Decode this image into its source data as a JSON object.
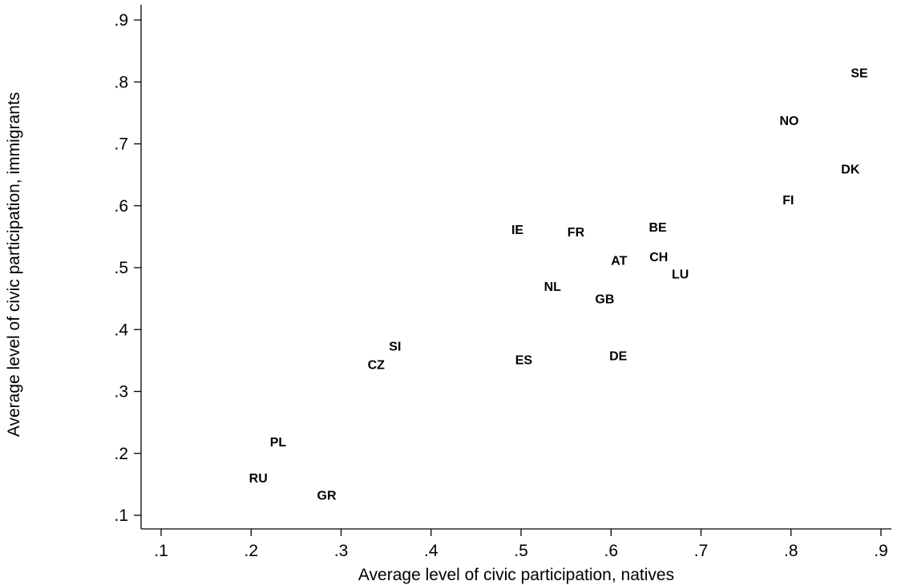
{
  "chart_data": {
    "type": "scatter",
    "title": "",
    "xlabel": "Average level of civic participation, natives",
    "ylabel": "Average level of civic participation, immigrants",
    "xlim": [
      0.1,
      0.9
    ],
    "ylim": [
      0.1,
      0.9
    ],
    "x_ticks": [
      ".1",
      ".2",
      ".3",
      ".4",
      ".5",
      ".6",
      ".7",
      ".8",
      ".9"
    ],
    "y_ticks": [
      ".1",
      ".2",
      ".3",
      ".4",
      ".5",
      ".6",
      ".7",
      ".8",
      ".9"
    ],
    "grid": false,
    "marker": "country-code label",
    "points": [
      {
        "label": "SE",
        "x": 0.876,
        "y": 0.815
      },
      {
        "label": "NO",
        "x": 0.798,
        "y": 0.738
      },
      {
        "label": "DK",
        "x": 0.866,
        "y": 0.66
      },
      {
        "label": "FI",
        "x": 0.797,
        "y": 0.61
      },
      {
        "label": "IE",
        "x": 0.496,
        "y": 0.562
      },
      {
        "label": "FR",
        "x": 0.561,
        "y": 0.558
      },
      {
        "label": "BE",
        "x": 0.652,
        "y": 0.566
      },
      {
        "label": "AT",
        "x": 0.609,
        "y": 0.512
      },
      {
        "label": "CH",
        "x": 0.653,
        "y": 0.518
      },
      {
        "label": "LU",
        "x": 0.677,
        "y": 0.49
      },
      {
        "label": "NL",
        "x": 0.535,
        "y": 0.47
      },
      {
        "label": "GB",
        "x": 0.593,
        "y": 0.45
      },
      {
        "label": "SI",
        "x": 0.36,
        "y": 0.374
      },
      {
        "label": "ES",
        "x": 0.503,
        "y": 0.352
      },
      {
        "label": "DE",
        "x": 0.608,
        "y": 0.358
      },
      {
        "label": "CZ",
        "x": 0.339,
        "y": 0.344
      },
      {
        "label": "PL",
        "x": 0.23,
        "y": 0.219
      },
      {
        "label": "RU",
        "x": 0.208,
        "y": 0.161
      },
      {
        "label": "GR",
        "x": 0.284,
        "y": 0.133
      }
    ]
  }
}
